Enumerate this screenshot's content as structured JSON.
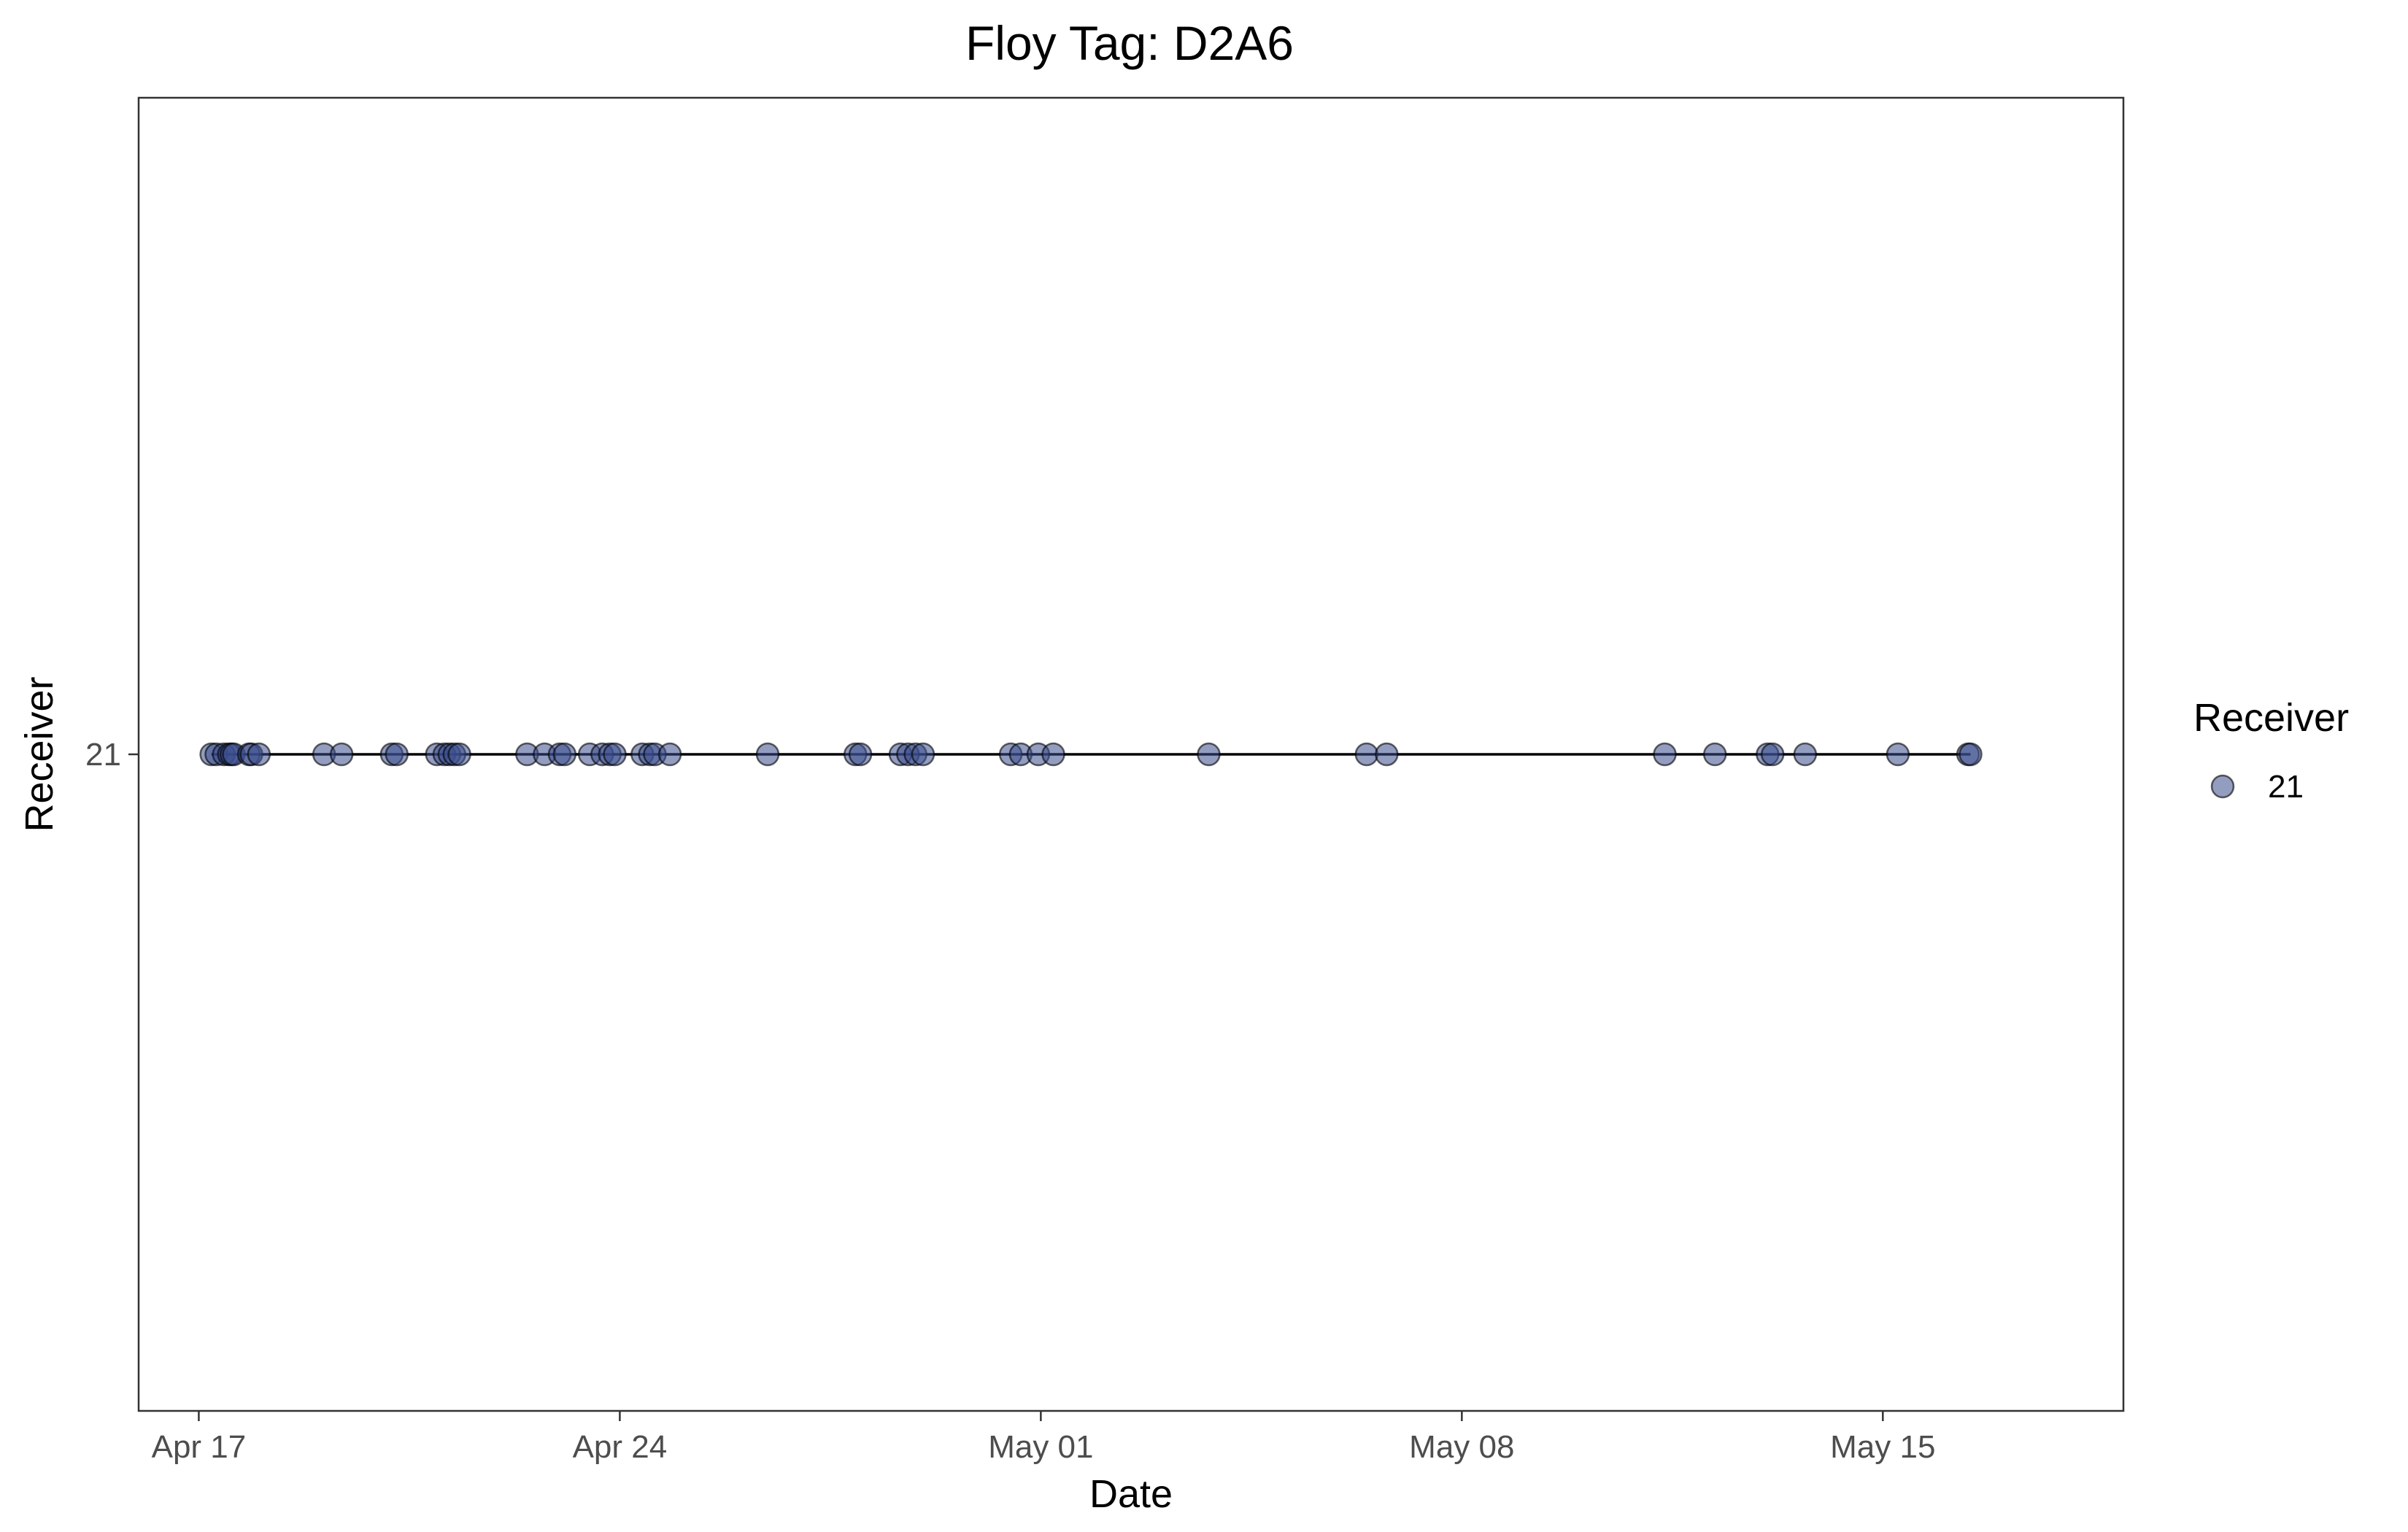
{
  "chart_data": {
    "type": "scatter",
    "title": "Floy Tag: D2A6",
    "xlabel": "Date",
    "ylabel": "Receiver",
    "x_ticks": [
      "Apr 17",
      "Apr 24",
      "May 01",
      "May 08",
      "May 15"
    ],
    "x_tick_dates": [
      "2024-04-17",
      "2024-04-24",
      "2024-05-01",
      "2024-05-08",
      "2024-05-15"
    ],
    "y_ticks": [
      "21"
    ],
    "xlim": [
      "2024-04-16T00:00",
      "2024-05-19T00:00"
    ],
    "grid": false,
    "connecting_line": true,
    "legend": {
      "title": "Receiver",
      "placement": "right",
      "entries": [
        "21"
      ]
    },
    "colors": {
      "point_fill": "#3b4d8c",
      "point_stroke": "#000000",
      "line": "#000000",
      "frame": "#333333"
    },
    "series": [
      {
        "name": "21",
        "y": "21",
        "x": [
          "2024-04-17T05:00",
          "2024-04-17T07:00",
          "2024-04-17T10:00",
          "2024-04-17T12:00",
          "2024-04-17T13:00",
          "2024-04-17T14:00",
          "2024-04-17T20:00",
          "2024-04-17T21:00",
          "2024-04-18T00:00",
          "2024-04-19T02:00",
          "2024-04-19T09:00",
          "2024-04-20T05:00",
          "2024-04-20T07:00",
          "2024-04-20T23:00",
          "2024-04-21T02:00",
          "2024-04-21T04:00",
          "2024-04-21T06:00",
          "2024-04-21T08:00",
          "2024-04-22T11:00",
          "2024-04-22T18:00",
          "2024-04-23T00:00",
          "2024-04-23T02:00",
          "2024-04-23T12:00",
          "2024-04-23T17:00",
          "2024-04-23T20:00",
          "2024-04-23T22:00",
          "2024-04-24T09:00",
          "2024-04-24T12:00",
          "2024-04-24T14:00",
          "2024-04-24T20:00",
          "2024-04-26T11:00",
          "2024-04-27T22:00",
          "2024-04-28T00:00",
          "2024-04-28T16:00",
          "2024-04-28T19:00",
          "2024-04-28T22:00",
          "2024-04-29T01:00",
          "2024-04-30T12:00",
          "2024-04-30T16:00",
          "2024-04-30T23:00",
          "2024-05-01T05:00",
          "2024-05-03T19:00",
          "2024-05-06T10:00",
          "2024-05-06T18:00",
          "2024-05-11T09:00",
          "2024-05-12T05:00",
          "2024-05-13T02:00",
          "2024-05-13T04:00",
          "2024-05-13T17:00",
          "2024-05-15T06:00",
          "2024-05-16T10:00",
          "2024-05-16T11:00"
        ]
      }
    ]
  }
}
